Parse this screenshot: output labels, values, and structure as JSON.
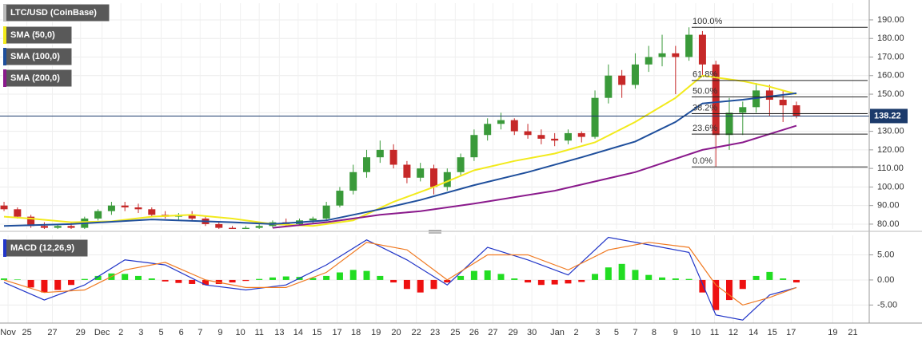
{
  "chart_data": [
    {
      "type": "candlestick",
      "title": "LTC/USD (CoinBase)",
      "up_color": "#3a9a3a",
      "down_color": "#c62828",
      "xlim": [
        -0.3,
        64.3
      ],
      "ylim": [
        77.4,
        199
      ],
      "grid": true,
      "yticks": [
        {
          "value": 80,
          "label": "80.00"
        },
        {
          "value": 90,
          "label": "90.00"
        },
        {
          "value": 100,
          "label": "100.00"
        },
        {
          "value": 110,
          "label": "110.00"
        },
        {
          "value": 120,
          "label": "120.00"
        },
        {
          "value": 130,
          "label": "130.00"
        },
        {
          "value": 140,
          "label": "140.00"
        },
        {
          "value": 150,
          "label": "150.00"
        },
        {
          "value": 160,
          "label": "160.00"
        },
        {
          "value": 170,
          "label": "170.00"
        },
        {
          "value": 180,
          "label": "180.00"
        },
        {
          "value": 190,
          "label": "190.00"
        }
      ],
      "candles": {
        "x": [
          0,
          1,
          2,
          3,
          4,
          5,
          6,
          7,
          8,
          9,
          10,
          11,
          12,
          13,
          14,
          15,
          16,
          17,
          18,
          19,
          20,
          21,
          22,
          23,
          24,
          25,
          26,
          27,
          28,
          29,
          30,
          31,
          32,
          33,
          34,
          35,
          36,
          37,
          38,
          39,
          40,
          41,
          42,
          43,
          44,
          45,
          46,
          47,
          48,
          49,
          50,
          51,
          52,
          53,
          54,
          55,
          56,
          57,
          58,
          59
        ],
        "open": [
          90,
          88,
          84,
          79,
          78,
          79,
          78,
          83,
          87,
          90,
          89,
          88,
          85,
          84,
          85,
          83,
          80,
          78,
          77,
          78,
          79,
          81,
          80,
          82,
          83,
          90,
          98,
          108,
          116,
          120,
          112,
          105,
          110,
          100,
          108,
          116,
          128,
          134,
          136,
          130,
          128,
          126,
          125,
          129,
          127,
          148,
          160,
          155,
          166,
          170,
          172,
          170,
          182,
          166,
          128,
          140,
          143,
          152,
          147,
          144
        ],
        "high": [
          92,
          89,
          85,
          81,
          80,
          81,
          84,
          88,
          92,
          92,
          91,
          89,
          87,
          86,
          87,
          84,
          81,
          79,
          79,
          80,
          82,
          83,
          83,
          84,
          92,
          100,
          112,
          120,
          125,
          123,
          114,
          113,
          112,
          110,
          118,
          131,
          137,
          140,
          137,
          134,
          131,
          129,
          131,
          130,
          152,
          166,
          163,
          172,
          176,
          182,
          176,
          186,
          184,
          168,
          148,
          146,
          156,
          155,
          152,
          146
        ],
        "low": [
          87,
          83,
          78,
          76,
          76,
          77,
          77,
          82,
          85,
          87,
          86,
          84,
          83,
          82,
          82,
          79,
          77,
          76,
          76,
          77,
          78,
          79,
          79,
          80,
          82,
          89,
          96,
          105,
          113,
          110,
          102,
          103,
          96,
          98,
          106,
          114,
          125,
          131,
          128,
          126,
          123,
          122,
          123,
          124,
          126,
          145,
          148,
          153,
          162,
          165,
          150,
          168,
          160,
          111,
          120,
          128,
          140,
          138,
          135,
          137
        ],
        "close": [
          88,
          84,
          79,
          78,
          79,
          78,
          83,
          87,
          90,
          89,
          88,
          85,
          84,
          85,
          83,
          80,
          78,
          77,
          78,
          79,
          81,
          80,
          82,
          83,
          90,
          98,
          108,
          116,
          120,
          112,
          105,
          110,
          100,
          108,
          116,
          128,
          134,
          136,
          130,
          128,
          126,
          125,
          129,
          127,
          148,
          160,
          155,
          166,
          170,
          172,
          170,
          182,
          166,
          128,
          140,
          143,
          152,
          147,
          144,
          138.22
        ]
      },
      "series": [
        {
          "name": "SMA (50,0)",
          "color": "#f2ea1c",
          "x": [
            0,
            2,
            5,
            8,
            11,
            14,
            17,
            20,
            23,
            26,
            29,
            32,
            35,
            38,
            41,
            44,
            47,
            50,
            52,
            55,
            57,
            59
          ],
          "values": [
            84,
            83,
            81,
            81.5,
            84,
            85,
            83,
            80,
            79,
            82,
            92,
            100,
            109,
            114,
            118,
            124,
            135,
            148,
            160,
            157,
            154,
            150
          ]
        },
        {
          "name": "SMA (100,0)",
          "color": "#1f4f9c",
          "x": [
            0,
            5,
            11,
            17,
            20,
            24,
            28,
            31,
            35,
            39,
            43,
            47,
            50,
            52,
            55,
            59
          ],
          "values": [
            79,
            80,
            82.5,
            81,
            80,
            82,
            88,
            93,
            101,
            108,
            116,
            124.5,
            135,
            145,
            147,
            150.5
          ]
        },
        {
          "name": "SMA (200,0)",
          "color": "#8a1a8c",
          "x": [
            20,
            24,
            28,
            31,
            35,
            41,
            47,
            52,
            55,
            59
          ],
          "values": [
            78,
            81,
            85,
            87,
            91,
            98,
            108,
            120,
            124,
            133
          ]
        }
      ],
      "fib_start_x": 51.2,
      "fib_levels": [
        {
          "value": 186,
          "label": "100.0%"
        },
        {
          "value": 157.4,
          "label": "61.8%"
        },
        {
          "value": 148.5,
          "label": "50.0%"
        },
        {
          "value": 139.5,
          "label": "38.2%"
        },
        {
          "value": 128.5,
          "label": "23.6%"
        },
        {
          "value": 110.8,
          "label": "0.0%"
        }
      ],
      "last_price": 138.22,
      "last_price_color": "#1b3a6b"
    },
    {
      "type": "macd",
      "title": "MACD (12,26,9)",
      "xlim": [
        -0.3,
        64.3
      ],
      "ylim": [
        -8.6,
        8.9
      ],
      "grid": true,
      "yticks": [
        {
          "value": 5,
          "label": "5.00"
        },
        {
          "value": 0,
          "label": "0.00"
        },
        {
          "value": -5,
          "label": "-5.00"
        }
      ],
      "xticks": [
        {
          "value": 0.3,
          "label": "Nov"
        },
        {
          "value": 1.7,
          "label": "25"
        },
        {
          "value": 3.6,
          "label": "27"
        },
        {
          "value": 5.7,
          "label": "29"
        },
        {
          "value": 7.3,
          "label": "Dec"
        },
        {
          "value": 8.7,
          "label": "2"
        },
        {
          "value": 10.2,
          "label": "3"
        },
        {
          "value": 11.7,
          "label": "5"
        },
        {
          "value": 13.2,
          "label": "6"
        },
        {
          "value": 14.6,
          "label": "7"
        },
        {
          "value": 16.1,
          "label": "9"
        },
        {
          "value": 17.6,
          "label": "10"
        },
        {
          "value": 19.0,
          "label": "11"
        },
        {
          "value": 20.5,
          "label": "13"
        },
        {
          "value": 21.9,
          "label": "14"
        },
        {
          "value": 23.3,
          "label": "15"
        },
        {
          "value": 24.8,
          "label": "17"
        },
        {
          "value": 26.2,
          "label": "18"
        },
        {
          "value": 27.7,
          "label": "19"
        },
        {
          "value": 29.2,
          "label": "20"
        },
        {
          "value": 30.7,
          "label": "22"
        },
        {
          "value": 32.1,
          "label": "23"
        },
        {
          "value": 33.6,
          "label": "25"
        },
        {
          "value": 35.0,
          "label": "26"
        },
        {
          "value": 36.4,
          "label": "27"
        },
        {
          "value": 37.9,
          "label": "29"
        },
        {
          "value": 39.3,
          "label": "30"
        },
        {
          "value": 41.2,
          "label": "Jan"
        },
        {
          "value": 42.6,
          "label": "2"
        },
        {
          "value": 44.2,
          "label": "3"
        },
        {
          "value": 45.6,
          "label": "5"
        },
        {
          "value": 47.0,
          "label": "7"
        },
        {
          "value": 48.4,
          "label": "8"
        },
        {
          "value": 50.0,
          "label": "9"
        },
        {
          "value": 51.5,
          "label": "10"
        },
        {
          "value": 52.9,
          "label": "11"
        },
        {
          "value": 54.3,
          "label": "12"
        },
        {
          "value": 55.8,
          "label": "14"
        },
        {
          "value": 57.2,
          "label": "15"
        },
        {
          "value": 58.6,
          "label": "17"
        },
        {
          "value": 61.7,
          "label": "19"
        },
        {
          "value": 63.2,
          "label": "21"
        }
      ],
      "histogram": [
        0.3,
        0.1,
        -1.5,
        -2.5,
        -2,
        -1,
        0.2,
        0.8,
        1.3,
        1.2,
        0.8,
        0.3,
        -0.3,
        -0.6,
        -0.8,
        -1,
        -0.8,
        -0.5,
        -0.2,
        0.2,
        0.5,
        0.7,
        0.6,
        0.4,
        0.8,
        1.5,
        2,
        1.8,
        0.8,
        -0.5,
        -1.8,
        -2.5,
        -1.8,
        -0.5,
        0.8,
        1.8,
        1.9,
        1.2,
        0.3,
        -0.5,
        -1,
        -0.9,
        -0.7,
        -0.4,
        1.2,
        2.5,
        3.2,
        2,
        1,
        0.5,
        0.3,
        0.2,
        -2.5,
        -6,
        -4,
        -1.8,
        0.8,
        1.6,
        0.3,
        -0.5
      ],
      "hist_up_color": "#22dd22",
      "hist_down_color": "#ee1111",
      "series": [
        {
          "color": "#2236c8",
          "x": [
            0,
            3,
            6,
            9,
            12,
            15,
            18,
            21,
            24,
            27,
            30,
            33,
            36,
            39,
            42,
            45,
            48,
            51,
            53,
            55,
            57,
            59
          ],
          "values": [
            -0.5,
            -4,
            -1,
            4,
            3,
            -1,
            -2,
            -1,
            3,
            8,
            4,
            -1,
            6.5,
            4,
            1,
            8.5,
            7,
            5.5,
            -7,
            -8,
            -3,
            -1.5
          ]
        },
        {
          "color": "#f07a22",
          "x": [
            0,
            3,
            6,
            9,
            12,
            15,
            18,
            21,
            24,
            27,
            30,
            33,
            36,
            39,
            42,
            45,
            48,
            51,
            53,
            55,
            57,
            59
          ],
          "values": [
            0,
            -2.5,
            -2,
            2,
            3.5,
            0,
            -1.5,
            -1.5,
            1.5,
            7.5,
            6,
            0,
            5,
            5,
            2,
            6,
            7.5,
            6.5,
            -1,
            -5,
            -3.5,
            -1.5
          ]
        }
      ]
    }
  ]
}
